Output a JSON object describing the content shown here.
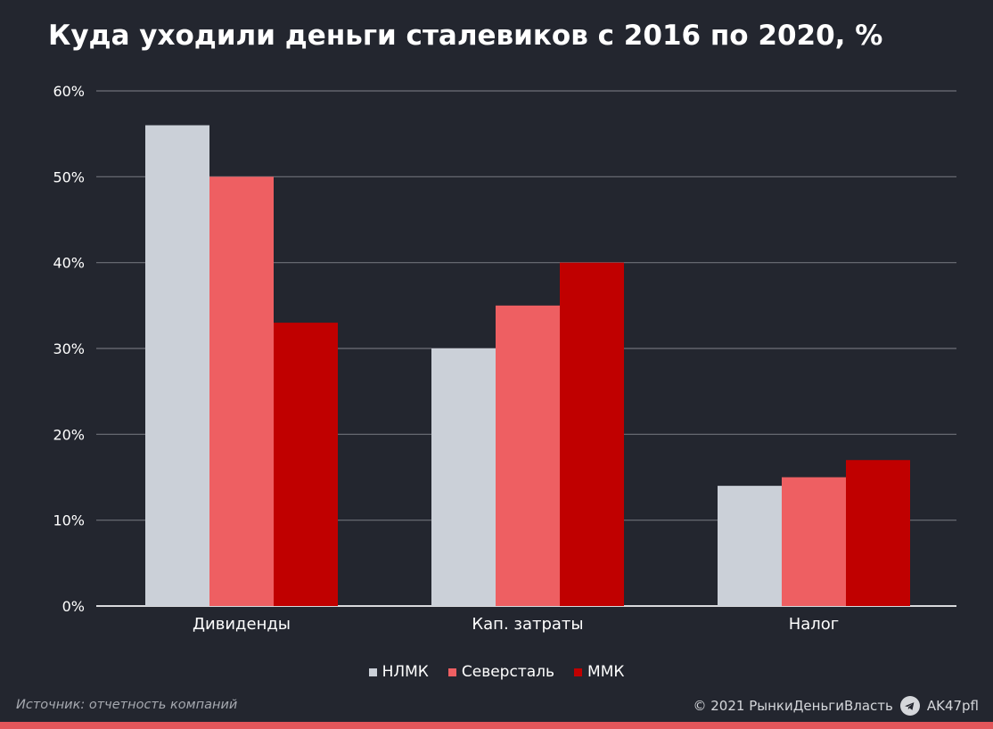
{
  "title": "Куда уходили деньги сталевиков с 2016 по 2020, %",
  "colors": {
    "background": "#23262f",
    "НЛМК": "#cbd0d8",
    "Северсталь": "#ee5f62",
    "ММК": "#c00000",
    "grid": "#6e7179"
  },
  "chart_data": {
    "type": "bar",
    "title": "Куда уходили деньги сталевиков с 2016 по 2020, %",
    "categories": [
      "Дивиденды",
      "Кап. затраты",
      "Налог"
    ],
    "series": [
      {
        "name": "НЛМК",
        "values": [
          56,
          30,
          14
        ]
      },
      {
        "name": "Северсталь",
        "values": [
          50,
          35,
          15
        ]
      },
      {
        "name": "ММК",
        "values": [
          33,
          40,
          17
        ]
      }
    ],
    "yticks": [
      "0%",
      "10%",
      "20%",
      "30%",
      "40%",
      "50%",
      "60%"
    ],
    "ylim": [
      0,
      60
    ],
    "grid": true,
    "legend_position": "bottom-center"
  },
  "legend": [
    {
      "label": "НЛМК"
    },
    {
      "label": "Северсталь"
    },
    {
      "label": "ММК"
    }
  ],
  "footer": {
    "source": "Источник: отчетность компаний",
    "copyright": "© 2021  РынкиДеньгиВласть",
    "channel": "AK47pfl",
    "channel_icon": "telegram-icon"
  }
}
